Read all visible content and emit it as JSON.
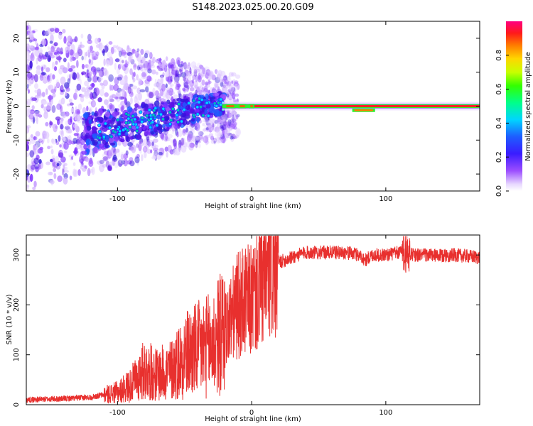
{
  "title": "S148.2023.025.00.20.G09",
  "colors": {
    "snr_line": "#e8302e",
    "axis": "#000000",
    "background": "#ffffff"
  },
  "chart_data": [
    {
      "type": "heatmap",
      "xlabel": "Height of straight line (km)",
      "ylabel": "Frequency (Hz)",
      "xlim": [
        -168,
        170
      ],
      "ylim": [
        -25,
        25
      ],
      "xticks": [
        -100,
        0,
        100
      ],
      "yticks": [
        -20,
        -10,
        0,
        10,
        20
      ],
      "colorbar": {
        "label": "Normalized spectral amplitude",
        "range": [
          0,
          1
        ],
        "ticks": [
          "0.0",
          "0.2",
          "0.4",
          "0.6",
          "0.8"
        ],
        "colormap": "hsv_like_white_to_magenta"
      },
      "features": {
        "central_line_frequency": 0.0,
        "central_line_start_km": 0,
        "central_line_end_km": 170,
        "scatter_region_km": [
          -168,
          -20
        ],
        "scatter_freq_spread_hz": [
          -25,
          25
        ]
      }
    },
    {
      "type": "line",
      "xlabel": "Height of straight line (km)",
      "ylabel": "SNR (10 * v/v)",
      "xlim": [
        -168,
        170
      ],
      "ylim": [
        0,
        340
      ],
      "xticks": [
        -100,
        0,
        100
      ],
      "yticks": [
        0,
        100,
        200,
        300
      ],
      "series": [
        {
          "color": "#e8302e",
          "x": [
            -168,
            -140,
            -120,
            -100,
            -90,
            -80,
            -70,
            -60,
            -50,
            -40,
            -30,
            -20,
            -10,
            0,
            10,
            20,
            30,
            40,
            50,
            60,
            70,
            80,
            85,
            90,
            100,
            110,
            115,
            120,
            130,
            140,
            150,
            160,
            170
          ],
          "y": [
            10,
            12,
            15,
            25,
            40,
            70,
            60,
            70,
            100,
            110,
            120,
            150,
            200,
            210,
            250,
            285,
            295,
            305,
            305,
            305,
            305,
            300,
            290,
            300,
            300,
            305,
            310,
            300,
            300,
            298,
            300,
            298,
            295
          ]
        }
      ]
    }
  ]
}
